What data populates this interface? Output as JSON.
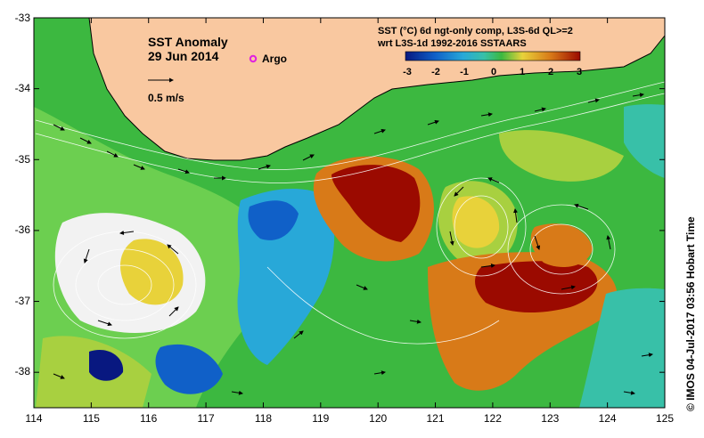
{
  "map": {
    "title": "SST Anomaly",
    "date": "29 Jun 2014",
    "argo_label": "Argo",
    "scale_label": "0.5 m/s",
    "product_line1": "SST (°C) 6d ngt-only comp, L3S-6d QL>=2",
    "product_line2": "wrt L3S-1d 1992-2016 SSTAARS",
    "credit": "© IMOS 04-Jul-2017 03:56 Hobart Time",
    "x_ticks": [
      "114",
      "115",
      "116",
      "117",
      "118",
      "119",
      "120",
      "121",
      "122",
      "123",
      "124",
      "125"
    ],
    "y_ticks": [
      "-33",
      "-34",
      "-35",
      "-36",
      "-37",
      "-38"
    ],
    "colorbar_ticks": [
      "-3",
      "-2",
      "-1",
      "0",
      "1",
      "2",
      "3"
    ],
    "colors": {
      "land": "#f9c8a0",
      "deep_red": "#9b0a00",
      "orange": "#d87a18",
      "yellow": "#e8d23a",
      "yellow_green": "#a8d040",
      "green": "#3cb840",
      "teal": "#38c0a8",
      "cyan": "#28a8d8",
      "blue": "#1060c8",
      "navy": "#081880",
      "argo_marker": "#e020e0"
    }
  }
}
